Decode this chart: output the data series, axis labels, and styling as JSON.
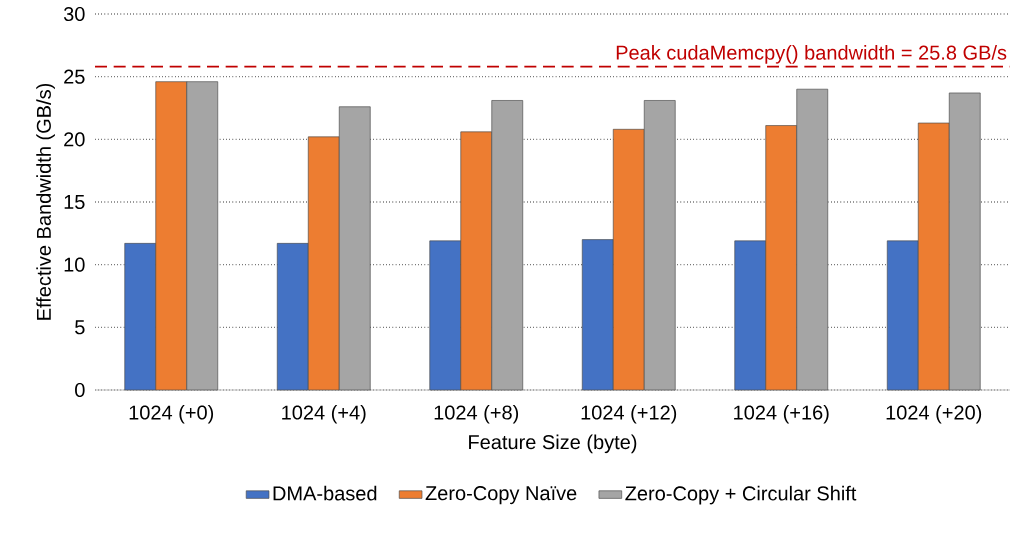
{
  "chart_data": {
    "type": "bar",
    "xlabel": "Feature Size (byte)",
    "ylabel": "Effective Bandwidth (GB/s)",
    "categories": [
      "1024 (+0)",
      "1024 (+4)",
      "1024 (+8)",
      "1024 (+12)",
      "1024 (+16)",
      "1024 (+20)"
    ],
    "series": [
      {
        "name": "DMA-based",
        "color": "#4472c4",
        "values": [
          11.7,
          11.7,
          11.9,
          12.0,
          11.9,
          11.9
        ]
      },
      {
        "name": "Zero-Copy Naïve",
        "color": "#ed7d31",
        "values": [
          24.6,
          20.2,
          20.6,
          20.8,
          21.1,
          21.3
        ]
      },
      {
        "name": "Zero-Copy + Circular Shift",
        "color": "#a5a5a5",
        "values": [
          24.6,
          22.6,
          23.1,
          23.1,
          24.0,
          23.7
        ]
      }
    ],
    "ylim": [
      0,
      30
    ],
    "yticks": [
      0,
      5,
      10,
      15,
      20,
      25,
      30
    ],
    "grid": "y",
    "legend": "bottom",
    "ref_lines": [
      {
        "axis": "y",
        "value": 25.8,
        "label": "Peak cudaMemcpy() bandwidth = 25.8 GB/s",
        "color": "#c00000",
        "line_style": "dashed"
      }
    ]
  }
}
